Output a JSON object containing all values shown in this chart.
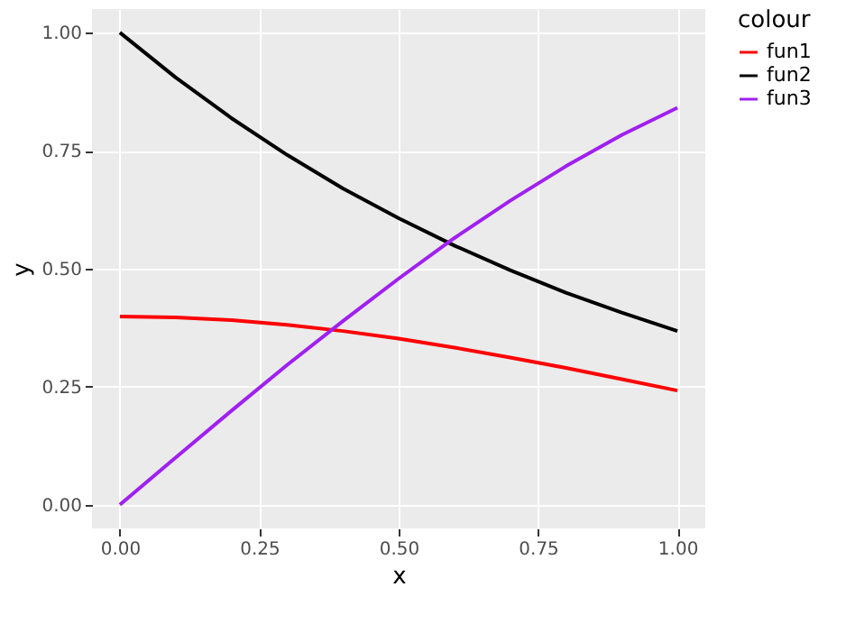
{
  "chart_data": {
    "type": "line",
    "xlabel": "x",
    "ylabel": "y",
    "legend_title": "colour",
    "x": [
      0,
      0.1,
      0.2,
      0.3,
      0.4,
      0.5,
      0.6,
      0.7,
      0.8,
      0.9,
      1.0
    ],
    "series": [
      {
        "name": "fun1",
        "color": "#ff0000",
        "values": [
          0.399,
          0.397,
          0.391,
          0.381,
          0.368,
          0.352,
          0.333,
          0.312,
          0.29,
          0.266,
          0.242
        ]
      },
      {
        "name": "fun2",
        "color": "#000000",
        "values": [
          1.0,
          0.905,
          0.819,
          0.741,
          0.67,
          0.607,
          0.549,
          0.497,
          0.449,
          0.407,
          0.368
        ]
      },
      {
        "name": "fun3",
        "color": "#a020f0",
        "values": [
          0.0,
          0.1,
          0.199,
          0.296,
          0.389,
          0.479,
          0.565,
          0.644,
          0.717,
          0.783,
          0.841
        ]
      }
    ],
    "xlim": [
      -0.05,
      1.05
    ],
    "ylim": [
      -0.05,
      1.05
    ],
    "xticks": [
      {
        "value": 0,
        "label": "0.00"
      },
      0.25,
      {
        "value": 0.5,
        "label": "0.50"
      },
      0.75,
      {
        "value": 1,
        "label": "1.00"
      }
    ],
    "yticks": [
      {
        "value": 0,
        "label": "0.00"
      },
      0.25,
      {
        "value": 0.5,
        "label": "0.50"
      },
      0.75,
      {
        "value": 1,
        "label": "1.00"
      }
    ],
    "grid": true,
    "legend": "right",
    "line_style": "solid",
    "marker": "none"
  }
}
